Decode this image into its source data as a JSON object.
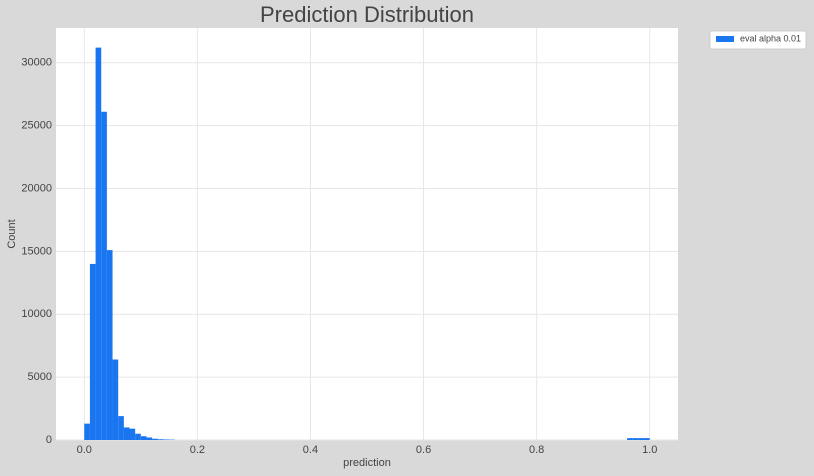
{
  "chart_data": {
    "type": "histogram",
    "title": "Prediction Distribution",
    "x_label": "prediction",
    "y_label": "Count",
    "bins": [
      0,
      0.01,
      0.02,
      0.03,
      0.04,
      0.05,
      0.06,
      0.07,
      0.08,
      0.09,
      0.1,
      0.11,
      0.12,
      0.13,
      0.14,
      0.15,
      0.16,
      0.17,
      0.18,
      0.19,
      0.2,
      0.21,
      0.22,
      0.23,
      0.24,
      0.25,
      0.26,
      0.27,
      0.28,
      0.29,
      0.3,
      0.31,
      0.32,
      0.33,
      0.34,
      0.35,
      0.36,
      0.37,
      0.38,
      0.39,
      0.4,
      0.41,
      0.42,
      0.43,
      0.44,
      0.45,
      0.46,
      0.47,
      0.48,
      0.49,
      0.5,
      0.51,
      0.52,
      0.53,
      0.54,
      0.55,
      0.56,
      0.57,
      0.58,
      0.59,
      0.6,
      0.61,
      0.62,
      0.63,
      0.64,
      0.65,
      0.66,
      0.67,
      0.68,
      0.69,
      0.7,
      0.71,
      0.72,
      0.73,
      0.74,
      0.75,
      0.76,
      0.77,
      0.78,
      0.79,
      0.8,
      0.81,
      0.82,
      0.83,
      0.84,
      0.85,
      0.86,
      0.87,
      0.88,
      0.89,
      0.9,
      0.91,
      0.92,
      0.93,
      0.94,
      0.95,
      0.96,
      0.97,
      0.98,
      0.99,
      1
    ],
    "series": [
      {
        "name": "eval alpha 0.01",
        "color": "#1a75f0",
        "values": [
          1300,
          14000,
          31200,
          26100,
          15100,
          6400,
          1900,
          1000,
          900,
          500,
          300,
          200,
          100,
          60,
          40,
          30,
          0,
          0,
          0,
          0,
          0,
          0,
          0,
          0,
          0,
          0,
          0,
          0,
          0,
          0,
          0,
          0,
          0,
          0,
          0,
          0,
          0,
          0,
          0,
          0,
          0,
          0,
          0,
          0,
          0,
          0,
          0,
          0,
          0,
          0,
          0,
          0,
          0,
          0,
          0,
          0,
          0,
          0,
          0,
          0,
          0,
          0,
          0,
          0,
          0,
          0,
          0,
          0,
          0,
          0,
          0,
          0,
          0,
          0,
          0,
          0,
          0,
          0,
          0,
          0,
          0,
          0,
          0,
          0,
          0,
          0,
          0,
          0,
          0,
          0,
          0,
          0,
          0,
          0,
          0,
          0,
          150,
          150,
          150,
          150
        ]
      }
    ],
    "xlim": [
      -0.05,
      1.05
    ],
    "ylim": [
      0,
      32760
    ],
    "xticks": [
      {
        "value": 0,
        "label": "0.0"
      },
      0.2,
      0.4,
      0.6,
      0.8,
      {
        "value": 1,
        "label": "1.0"
      }
    ],
    "yticks": [
      0,
      5000,
      10000,
      15000,
      20000,
      25000,
      30000
    ],
    "grid": true,
    "legend": "outside-upper-right"
  }
}
